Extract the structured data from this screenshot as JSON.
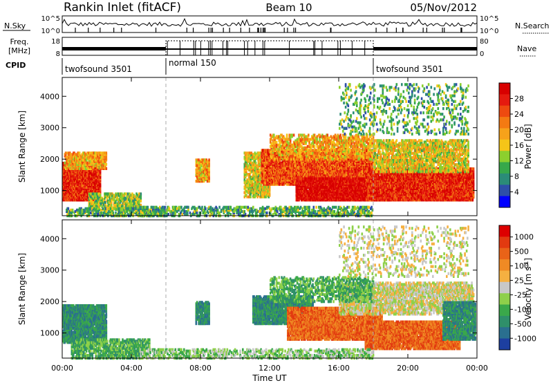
{
  "header": {
    "title": "Rankin Inlet (fitACF)",
    "beam": "Beam 10",
    "date": "05/Nov/2012"
  },
  "info_panels": {
    "nsky_label": "N.Sky",
    "nsearch_label": "N.Search",
    "nsky_ticks": [
      "10^5",
      "10^0"
    ],
    "nsearch_ticks": [
      "10^5",
      "10^0"
    ],
    "freq_label_1": "Freq.",
    "freq_label_2": "[MHz]",
    "freq_ticks": [
      "18",
      "8"
    ],
    "nave_label": "Nave",
    "nave_ticks": [
      "80",
      "0"
    ],
    "cpid_label": "CPID",
    "cpid_segments": [
      {
        "label": "twofsound 3501",
        "start_hour": 0,
        "end_hour": 6
      },
      {
        "label": "normal 150",
        "start_hour": 6,
        "end_hour": 18
      },
      {
        "label": "twofsound 3501",
        "start_hour": 18,
        "end_hour": 24
      }
    ]
  },
  "chart_data": [
    {
      "type": "heatmap",
      "name": "power",
      "xlabel": "",
      "ylabel": "Slant Range [km]",
      "xlim": [
        0,
        24
      ],
      "ylim": [
        200,
        4600
      ],
      "yticks": [
        1000,
        2000,
        3000,
        4000
      ],
      "colorbar": {
        "label": "Power [dB]",
        "ticks": [
          "4",
          "8",
          "12",
          "16",
          "20",
          "24",
          "28"
        ],
        "colors": [
          "#0000ff",
          "#2e4fa8",
          "#2b8c78",
          "#37a84a",
          "#8ccf2e",
          "#f5c518",
          "#f7a21a",
          "#f47a12",
          "#ee4a10",
          "#e51a0f",
          "#d80000"
        ]
      },
      "bands": [
        {
          "t0": 0.0,
          "t1": 2.2,
          "r0": 700,
          "r1": 1900,
          "level": 9,
          "density": 0.9
        },
        {
          "t0": 0.1,
          "t1": 2.5,
          "r0": 1700,
          "r1": 2200,
          "level": 6,
          "density": 0.6
        },
        {
          "t0": 1.5,
          "t1": 4.5,
          "r0": 400,
          "r1": 900,
          "level": 4,
          "density": 0.5
        },
        {
          "t0": 0.2,
          "t1": 6.0,
          "r0": 200,
          "r1": 450,
          "level": 3,
          "density": 0.4
        },
        {
          "t0": 7.7,
          "t1": 8.5,
          "r0": 1300,
          "r1": 2000,
          "level": 6,
          "density": 0.7
        },
        {
          "t0": 10.5,
          "t1": 12.0,
          "r0": 800,
          "r1": 2200,
          "level": 5,
          "density": 0.5
        },
        {
          "t0": 11.5,
          "t1": 18.0,
          "r0": 1200,
          "r1": 2300,
          "level": 8,
          "density": 0.8
        },
        {
          "t0": 13.5,
          "t1": 19.0,
          "r0": 700,
          "r1": 1400,
          "level": 10,
          "density": 0.9
        },
        {
          "t0": 17.5,
          "t1": 23.8,
          "r0": 700,
          "r1": 1700,
          "level": 9,
          "density": 0.8
        },
        {
          "t0": 12.0,
          "t1": 18.0,
          "r0": 2000,
          "r1": 2800,
          "level": 6,
          "density": 0.4
        },
        {
          "t0": 18.0,
          "t1": 23.5,
          "r0": 1600,
          "r1": 2600,
          "level": 5,
          "density": 0.5
        },
        {
          "t0": 16.0,
          "t1": 23.5,
          "r0": 2800,
          "r1": 4400,
          "level": 3,
          "density": 0.12
        },
        {
          "t0": 4.5,
          "t1": 18.0,
          "r0": 200,
          "r1": 500,
          "level": 3,
          "density": 0.35
        }
      ]
    },
    {
      "type": "heatmap",
      "name": "velocity",
      "xlabel": "Time UT",
      "ylabel": "Slant Range [km]",
      "xlim": [
        0,
        24
      ],
      "ylim": [
        200,
        4600
      ],
      "yticks": [
        1000,
        2000,
        3000,
        4000
      ],
      "xticks": [
        "00:00",
        "04:00",
        "08:00",
        "12:00",
        "16:00",
        "20:00",
        "00:00"
      ],
      "colorbar": {
        "label": "Velocity [m s-1]",
        "ticks": [
          "1000",
          "500",
          "100",
          "25",
          "-25",
          "-100",
          "-500",
          "-1000"
        ],
        "colors": [
          "#1d3fa0",
          "#2a6f8f",
          "#2f8f6a",
          "#3aa84a",
          "#8ed04a",
          "#c8c8c8",
          "#f5b041",
          "#f08a24",
          "#e96318",
          "#e23a10",
          "#dd0000"
        ]
      },
      "bands": [
        {
          "t0": 0.0,
          "t1": 2.5,
          "r0": 700,
          "r1": 1900,
          "level": 2,
          "density": 0.7
        },
        {
          "t0": 0.5,
          "t1": 5.0,
          "r0": 200,
          "r1": 800,
          "level": 3,
          "density": 0.5
        },
        {
          "t0": 7.7,
          "t1": 8.5,
          "r0": 1300,
          "r1": 2000,
          "level": 2,
          "density": 0.7
        },
        {
          "t0": 11.0,
          "t1": 14.5,
          "r0": 1300,
          "r1": 2200,
          "level": 2,
          "density": 0.7
        },
        {
          "t0": 13.0,
          "t1": 18.5,
          "r0": 800,
          "r1": 1800,
          "level": 8,
          "density": 0.8
        },
        {
          "t0": 17.5,
          "t1": 23.0,
          "r0": 500,
          "r1": 1400,
          "level": 8,
          "density": 0.75
        },
        {
          "t0": 16.0,
          "t1": 23.8,
          "r0": 1600,
          "r1": 2600,
          "level": 5,
          "density": 0.5
        },
        {
          "t0": 12.0,
          "t1": 18.0,
          "r0": 2000,
          "r1": 2800,
          "level": 3,
          "density": 0.35
        },
        {
          "t0": 22.0,
          "t1": 23.9,
          "r0": 800,
          "r1": 2000,
          "level": 2,
          "density": 0.6
        },
        {
          "t0": 16.0,
          "t1": 23.5,
          "r0": 2800,
          "r1": 4400,
          "level": 5,
          "density": 0.12
        },
        {
          "t0": 4.5,
          "t1": 18.0,
          "r0": 200,
          "r1": 500,
          "level": 4,
          "density": 0.35
        }
      ]
    }
  ]
}
